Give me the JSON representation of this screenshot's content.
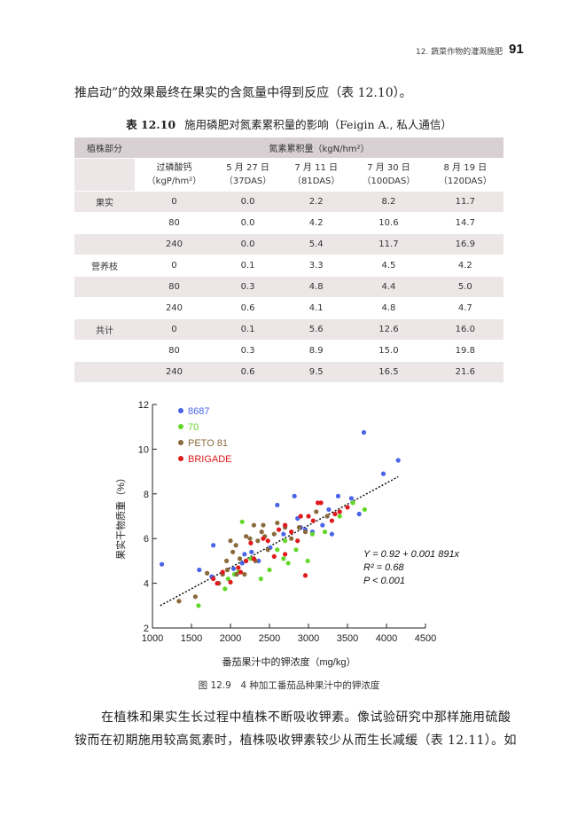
{
  "header": {
    "running_title": "12. 蔬菜作物的灌溉施肥",
    "page_number": "91"
  },
  "body": {
    "line_top": "推启动”的效果最终在果实的含氮量中得到反应（表 12.10）。",
    "para_line1": "在植株和果实生长过程中植株不断吸收钾素。像试验研究中那样施用硫酸",
    "para_line2": "铵而在初期施用较高氮素时，植株吸收钾素较少从而生长减缓（表 12.11）。如"
  },
  "table": {
    "caption_label": "表 12.10",
    "caption_text": "施用磷肥对氮素累积量的影响（Feigin A., 私人通信）",
    "col_group": "植株部分",
    "col_main": "氮素累积量（kgN/hm²）",
    "sub_col_0": "过磷酸钙",
    "sub_col_0_unit": "（kgP/hm²）",
    "sub_cols": [
      {
        "date": "5 月 27 日",
        "das": "（37DAS）"
      },
      {
        "date": "7 月 11 日",
        "das": "（81DAS）"
      },
      {
        "date": "7 月 30 日",
        "das": "（100DAS）"
      },
      {
        "date": "8 月 19 日",
        "das": "（120DAS）"
      }
    ],
    "groups": [
      "果实",
      "营养枝",
      "共计"
    ],
    "rows": [
      [
        "0",
        "0.0",
        "2.2",
        "8.2",
        "11.7"
      ],
      [
        "80",
        "0.0",
        "4.2",
        "10.6",
        "14.7"
      ],
      [
        "240",
        "0.0",
        "5.4",
        "11.7",
        "16.9"
      ],
      [
        "0",
        "0.1",
        "3.3",
        "4.5",
        "4.2"
      ],
      [
        "80",
        "0.3",
        "4.8",
        "4.4",
        "5.0"
      ],
      [
        "240",
        "0.6",
        "4.1",
        "4.8",
        "4.7"
      ],
      [
        "0",
        "0.1",
        "5.6",
        "12.6",
        "16.0"
      ],
      [
        "80",
        "0.3",
        "8.9",
        "15.0",
        "19.8"
      ],
      [
        "240",
        "0.6",
        "9.5",
        "16.5",
        "21.6"
      ]
    ]
  },
  "figure": {
    "caption": "图 12.9　4 种加工番茄品种果汁中的钾浓度",
    "equation_lines": [
      "Y = 0.92 + 0.001 891x",
      "R² = 0.68",
      "P < 0.001"
    ]
  },
  "chart_data": {
    "type": "scatter",
    "xlabel": "番茄果汁中的钾浓度（mg/kg）",
    "ylabel": "果实干物质重（%）",
    "xlim": [
      1000,
      4500
    ],
    "ylim": [
      2,
      12
    ],
    "x_ticks": [
      1000,
      1500,
      2000,
      2500,
      3000,
      3500,
      4000,
      4500
    ],
    "y_ticks": [
      2,
      4,
      6,
      8,
      10,
      12
    ],
    "legend_position": "top-left",
    "grid": false,
    "trendline": {
      "intercept": 0.92,
      "slope": 0.001891,
      "x_range": [
        1100,
        4150
      ],
      "style": "dotted"
    },
    "series": [
      {
        "name": "8687",
        "color": "#4a64e6",
        "points": [
          [
            1120,
            4.85
          ],
          [
            1600,
            4.6
          ],
          [
            1780,
            5.7
          ],
          [
            2040,
            4.65
          ],
          [
            2180,
            5.3
          ],
          [
            2270,
            5.4
          ],
          [
            2360,
            5.0
          ],
          [
            2510,
            5.6
          ],
          [
            2600,
            7.5
          ],
          [
            2680,
            6.2
          ],
          [
            2820,
            7.9
          ],
          [
            2860,
            6.9
          ],
          [
            2900,
            6.5
          ],
          [
            3050,
            6.3
          ],
          [
            3180,
            6.6
          ],
          [
            3260,
            7.3
          ],
          [
            3300,
            6.2
          ],
          [
            3380,
            7.9
          ],
          [
            3550,
            7.8
          ],
          [
            3650,
            7.1
          ],
          [
            3710,
            10.75
          ],
          [
            3960,
            8.9
          ],
          [
            4150,
            9.5
          ],
          [
            1760,
            4.3
          ],
          [
            2150,
            4.9
          ],
          [
            2960,
            6.4
          ]
        ]
      },
      {
        "name": "70",
        "color": "#63d82a",
        "points": [
          [
            1590,
            3.0
          ],
          [
            1930,
            3.75
          ],
          [
            1970,
            4.2
          ],
          [
            2050,
            4.4
          ],
          [
            2150,
            6.75
          ],
          [
            2260,
            5.1
          ],
          [
            2390,
            4.2
          ],
          [
            2500,
            4.6
          ],
          [
            2600,
            5.5
          ],
          [
            2680,
            5.1
          ],
          [
            2740,
            4.9
          ],
          [
            2840,
            5.5
          ],
          [
            2990,
            5.0
          ],
          [
            3050,
            6.2
          ],
          [
            3210,
            6.3
          ],
          [
            3400,
            7.0
          ],
          [
            3570,
            7.6
          ],
          [
            3720,
            7.3
          ],
          [
            2100,
            4.5
          ],
          [
            2700,
            5.9
          ]
        ]
      },
      {
        "name": "PETO 81",
        "color": "#8a6a3c",
        "points": [
          [
            1340,
            3.2
          ],
          [
            1550,
            3.4
          ],
          [
            1700,
            4.45
          ],
          [
            1850,
            4.0
          ],
          [
            1900,
            4.4
          ],
          [
            1950,
            5.0
          ],
          [
            2000,
            5.9
          ],
          [
            2030,
            5.4
          ],
          [
            2070,
            5.7
          ],
          [
            2120,
            5.1
          ],
          [
            2180,
            4.4
          ],
          [
            2250,
            6.0
          ],
          [
            2300,
            6.6
          ],
          [
            2320,
            5.0
          ],
          [
            2400,
            6.3
          ],
          [
            2420,
            6.6
          ],
          [
            2480,
            5.5
          ],
          [
            2560,
            6.2
          ],
          [
            2600,
            6.7
          ],
          [
            2700,
            6.5
          ],
          [
            2780,
            6.0
          ],
          [
            2880,
            6.5
          ],
          [
            2960,
            6.3
          ],
          [
            3100,
            7.2
          ],
          [
            3240,
            7.0
          ],
          [
            1960,
            4.6
          ],
          [
            2080,
            4.4
          ],
          [
            2200,
            6.1
          ],
          [
            2350,
            5.9
          ],
          [
            2440,
            6.1
          ]
        ]
      },
      {
        "name": "BRIGADE",
        "color": "#e0191c",
        "points": [
          [
            1780,
            4.2
          ],
          [
            1830,
            4.0
          ],
          [
            1900,
            4.5
          ],
          [
            2000,
            4.05
          ],
          [
            2100,
            4.7
          ],
          [
            2200,
            5.0
          ],
          [
            2260,
            5.8
          ],
          [
            2300,
            5.1
          ],
          [
            2420,
            6.0
          ],
          [
            2480,
            5.9
          ],
          [
            2560,
            5.2
          ],
          [
            2620,
            6.4
          ],
          [
            2700,
            6.6
          ],
          [
            2780,
            6.3
          ],
          [
            2860,
            5.9
          ],
          [
            2900,
            7.0
          ],
          [
            2960,
            4.35
          ],
          [
            3000,
            7.0
          ],
          [
            3060,
            6.8
          ],
          [
            3120,
            7.6
          ],
          [
            3160,
            7.6
          ],
          [
            3300,
            6.8
          ],
          [
            3340,
            7.1
          ],
          [
            3400,
            7.2
          ],
          [
            3500,
            7.4
          ],
          [
            2130,
            4.5
          ],
          [
            2700,
            5.3
          ]
        ]
      }
    ]
  }
}
